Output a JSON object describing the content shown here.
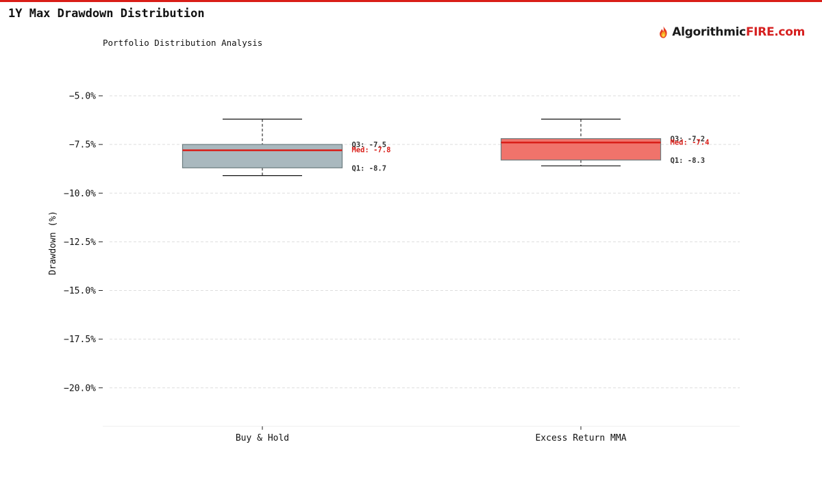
{
  "header": {
    "title": "1Y Max Drawdown Distribution",
    "subtitle": "Portfolio Distribution Analysis",
    "accent_color": "#d91e18"
  },
  "logo": {
    "name_part": "Algorithmic",
    "brand_part": "FIRE.com",
    "icon": "flame-icon"
  },
  "chart_data": {
    "type": "box",
    "title": "1Y Max Drawdown Distribution",
    "subtitle": "Portfolio Distribution Analysis",
    "ylabel": "Drawdown (%)",
    "xlabel": "",
    "ylim": [
      -22.0,
      -3.0
    ],
    "yticks": [
      -5.0,
      -7.5,
      -10.0,
      -12.5,
      -15.0,
      -17.5,
      -20.0
    ],
    "ytick_labels": [
      "−5.0%",
      "−7.5%",
      "−10.0%",
      "−12.5%",
      "−15.0%",
      "−17.5%",
      "−20.0%"
    ],
    "grid": true,
    "median_color": "#d91e18",
    "series": [
      {
        "name": "Buy & Hold",
        "whisker_low": -9.1,
        "q1": -8.7,
        "median": -7.8,
        "q3": -7.5,
        "whisker_high": -6.2,
        "color": "#a9b8be",
        "q3_label": "Q3: -7.5",
        "med_label": "Med: -7.8",
        "q1_label": "Q1: -8.7"
      },
      {
        "name": "Excess Return MMA",
        "whisker_low": -8.6,
        "q1": -8.3,
        "median": -7.4,
        "q3": -7.2,
        "whisker_high": -6.2,
        "color": "#f0736b",
        "q3_label": "Q3: -7.2",
        "med_label": "Med: -7.4",
        "q1_label": "Q1: -8.3"
      }
    ]
  }
}
